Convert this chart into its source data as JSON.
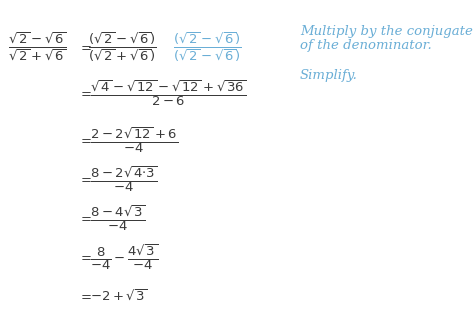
{
  "background_color": "#ffffff",
  "text_color": "#3a3a3a",
  "blue_color": "#6aaed6",
  "note_color": "#6aaed6",
  "figsize": [
    4.74,
    3.31
  ],
  "dpi": 100,
  "note1_text": "Multiply by the conjugate",
  "note2_text": "of the denominator.",
  "note3_text": "Simplify.",
  "note_fontsize": 9.5,
  "math_fontsize": 9.5
}
